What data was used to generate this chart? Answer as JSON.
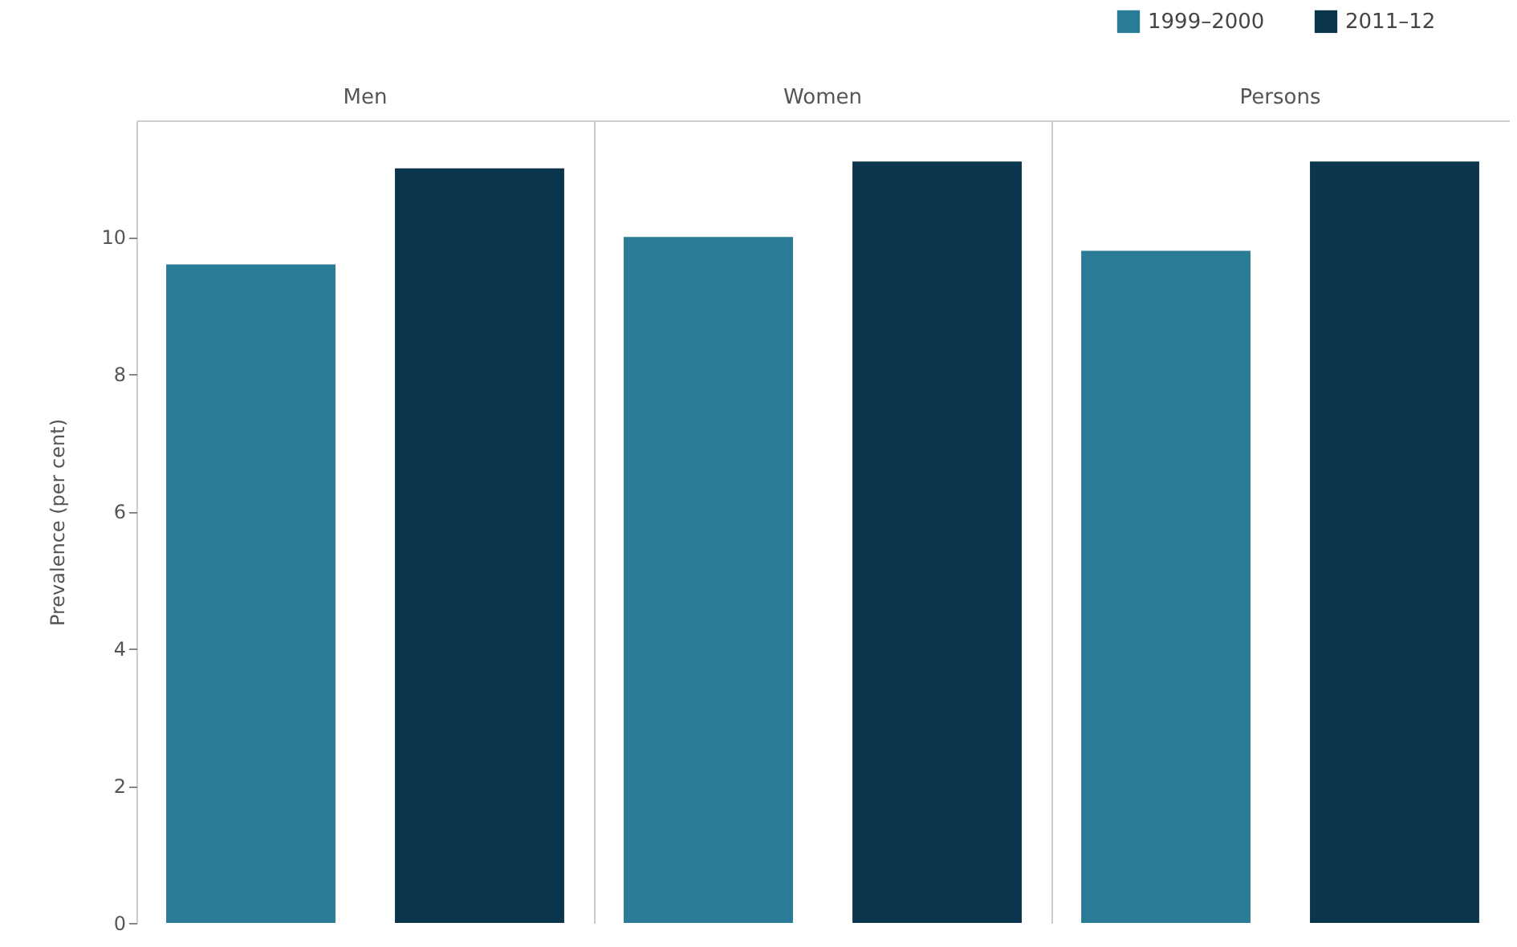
{
  "chart_data": {
    "type": "bar",
    "ylabel": "Prevalence (per cent)",
    "categories": [
      "Men",
      "Women",
      "Persons"
    ],
    "series": [
      {
        "name": "1999–2000",
        "color": "#2a7b96",
        "values": [
          9.6,
          10.0,
          9.8
        ]
      },
      {
        "name": "2011–12",
        "color": "#0b354c",
        "values": [
          11.0,
          11.1,
          11.1
        ]
      }
    ],
    "ylim": [
      0,
      11.7
    ],
    "yticks": [
      0,
      2,
      4,
      6,
      8,
      10
    ],
    "legend": "top right"
  }
}
